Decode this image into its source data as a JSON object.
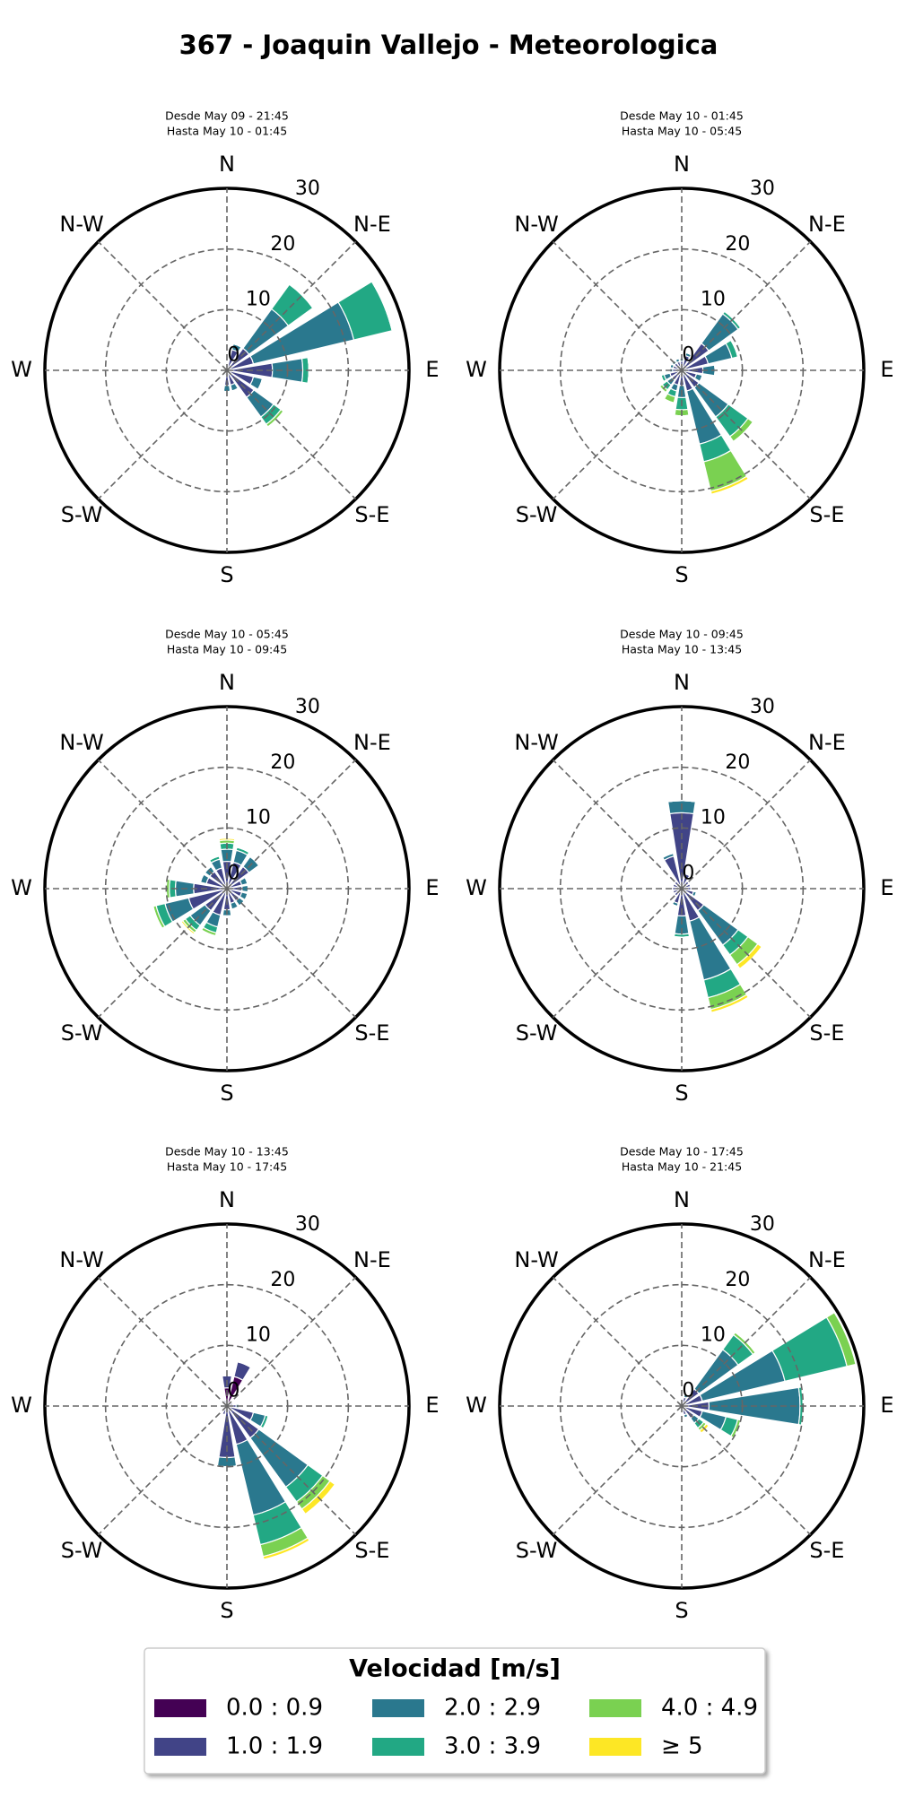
{
  "title": "367 - Joaquin Vallejo - Meteorologica",
  "legend": {
    "title": "Velocidad [m/s]",
    "items": [
      {
        "name": "0.0 : 0.9",
        "color": "#440154"
      },
      {
        "name": "1.0 : 1.9",
        "color": "#414487"
      },
      {
        "name": "2.0 : 2.9",
        "color": "#2a788e"
      },
      {
        "name": "3.0 : 3.9",
        "color": "#22a884"
      },
      {
        "name": "4.0 : 4.9",
        "color": "#7ad151"
      },
      {
        "name": "≥ 5",
        "color": "#fde725"
      }
    ]
  },
  "chart_data": [
    {
      "type": "windrose",
      "title": "Desde May 09 - 21:45",
      "subtitle": "Hasta May 10 - 01:45",
      "x": [
        0,
        22.5,
        45,
        67.5,
        90,
        112.5,
        135,
        157.5,
        180,
        202.5,
        225,
        247.5,
        270,
        292.5,
        315,
        337.5
      ],
      "xticks": [
        {
          "value": 0,
          "label": "N"
        },
        {
          "value": 45,
          "label": "N-E"
        },
        {
          "value": 90,
          "label": "E"
        },
        {
          "value": 135,
          "label": "S-E"
        },
        {
          "value": 180,
          "label": "S"
        },
        {
          "value": 225,
          "label": "S-W"
        },
        {
          "value": 270,
          "label": "W"
        },
        {
          "value": 315,
          "label": "N-W"
        }
      ],
      "ylim": [
        0,
        30
      ],
      "yticks": [
        0,
        10,
        20,
        30
      ],
      "series": [
        {
          "values": [
            0.3,
            0.5,
            0.5,
            0.5,
            0.5,
            0.5,
            0.5,
            0.5,
            0.5,
            0.3,
            0.3,
            0.3,
            0.3,
            0.3,
            0.3,
            0.3
          ]
        },
        {
          "values": [
            0.5,
            3,
            4,
            4,
            7,
            4,
            5,
            2,
            2,
            0.5,
            0.5,
            0.3,
            0.5,
            0.3,
            0.3,
            0.3
          ]
        },
        {
          "values": [
            0,
            1,
            8,
            17,
            5,
            1.5,
            4,
            1,
            1,
            0,
            0,
            0,
            0,
            0,
            0,
            0
          ]
        },
        {
          "values": [
            0,
            0,
            5,
            6.5,
            1,
            0,
            1.5,
            0,
            0,
            0,
            0,
            0,
            0,
            0,
            0,
            0
          ]
        },
        {
          "values": [
            0,
            0,
            0,
            0,
            0,
            0,
            0.5,
            0,
            0,
            0,
            0,
            0,
            0,
            0,
            0,
            0
          ]
        },
        {
          "values": [
            0,
            0,
            0,
            0,
            0,
            0,
            0,
            0,
            0,
            0,
            0,
            0,
            0,
            0,
            0,
            0
          ]
        }
      ]
    },
    {
      "type": "windrose",
      "title": "Desde May 10 - 01:45",
      "subtitle": "Hasta May 10 - 05:45",
      "x": [
        0,
        22.5,
        45,
        67.5,
        90,
        112.5,
        135,
        157.5,
        180,
        202.5,
        225,
        247.5,
        270,
        292.5,
        315,
        337.5
      ],
      "xticks": [
        {
          "value": 0,
          "label": "N"
        },
        {
          "value": 45,
          "label": "N-E"
        },
        {
          "value": 90,
          "label": "E"
        },
        {
          "value": 135,
          "label": "S-E"
        },
        {
          "value": 180,
          "label": "S"
        },
        {
          "value": 225,
          "label": "S-W"
        },
        {
          "value": 270,
          "label": "W"
        },
        {
          "value": 315,
          "label": "N-W"
        }
      ],
      "ylim": [
        0,
        30
      ],
      "yticks": [
        0,
        10,
        20,
        30
      ],
      "series": [
        {
          "values": [
            0.5,
            0.5,
            0.5,
            0.5,
            0.5,
            0.5,
            0.5,
            0.5,
            0.5,
            0.5,
            0.5,
            0.5,
            0.5,
            0.5,
            0.5,
            0.5
          ]
        },
        {
          "values": [
            1,
            2,
            5,
            4,
            3,
            2,
            3,
            3,
            2,
            2,
            1.5,
            1.5,
            1,
            1,
            1,
            1
          ]
        },
        {
          "values": [
            0.5,
            0.5,
            6,
            4,
            2,
            1,
            6,
            9,
            2,
            1,
            1,
            1,
            0.5,
            0.5,
            0.5,
            0.5
          ]
        },
        {
          "values": [
            0,
            0,
            0.5,
            1,
            0,
            0,
            4,
            3,
            2,
            1,
            1,
            0.5,
            0,
            0,
            0,
            0
          ]
        },
        {
          "values": [
            0,
            0,
            0,
            0,
            0,
            0,
            1,
            5,
            1,
            1,
            0.5,
            0,
            0,
            0,
            0,
            0
          ]
        },
        {
          "values": [
            0,
            0,
            0,
            0,
            0,
            0,
            0,
            0.5,
            0,
            0,
            0,
            0,
            0,
            0,
            0,
            0
          ]
        }
      ]
    },
    {
      "type": "windrose",
      "title": "Desde May 10 - 05:45",
      "subtitle": "Hasta May 10 - 09:45",
      "x": [
        0,
        22.5,
        45,
        67.5,
        90,
        112.5,
        135,
        157.5,
        180,
        202.5,
        225,
        247.5,
        270,
        292.5,
        315,
        337.5
      ],
      "xticks": [
        {
          "value": 0,
          "label": "N"
        },
        {
          "value": 45,
          "label": "N-E"
        },
        {
          "value": 90,
          "label": "E"
        },
        {
          "value": 135,
          "label": "S-E"
        },
        {
          "value": 180,
          "label": "S"
        },
        {
          "value": 225,
          "label": "S-W"
        },
        {
          "value": 270,
          "label": "W"
        },
        {
          "value": 315,
          "label": "N-W"
        }
      ],
      "ylim": [
        0,
        30
      ],
      "yticks": [
        0,
        10,
        20,
        30
      ],
      "series": [
        {
          "values": [
            0.5,
            0.5,
            0.5,
            0.5,
            0.5,
            0.5,
            0.5,
            0.5,
            0.5,
            0.5,
            0.5,
            0.5,
            0.5,
            0.5,
            0.5,
            0.5
          ]
        },
        {
          "values": [
            4,
            4,
            4,
            2,
            2,
            2,
            2,
            2,
            3,
            4,
            4,
            6,
            5,
            3,
            3,
            3
          ]
        },
        {
          "values": [
            2,
            2,
            2,
            1,
            1,
            1,
            1,
            1,
            1,
            2,
            3,
            4,
            3,
            1,
            1,
            1.5
          ]
        },
        {
          "values": [
            1,
            0.5,
            0,
            0,
            0,
            0,
            0,
            0,
            0,
            1,
            1,
            1.5,
            1,
            0,
            0,
            0.5
          ]
        },
        {
          "values": [
            0.5,
            0,
            0,
            0,
            0,
            0,
            0,
            0,
            0,
            0.5,
            0.5,
            0.5,
            0.5,
            0,
            0,
            0
          ]
        },
        {
          "values": [
            0.3,
            0,
            0,
            0,
            0,
            0,
            0,
            0,
            0,
            0,
            0.3,
            0,
            0,
            0,
            0,
            0
          ]
        }
      ]
    },
    {
      "type": "windrose",
      "title": "Desde May 10 - 09:45",
      "subtitle": "Hasta May 10 - 13:45",
      "x": [
        0,
        22.5,
        45,
        67.5,
        90,
        112.5,
        135,
        157.5,
        180,
        202.5,
        225,
        247.5,
        270,
        292.5,
        315,
        337.5
      ],
      "xticks": [
        {
          "value": 0,
          "label": "N"
        },
        {
          "value": 45,
          "label": "N-E"
        },
        {
          "value": 90,
          "label": "E"
        },
        {
          "value": 135,
          "label": "S-E"
        },
        {
          "value": 180,
          "label": "S"
        },
        {
          "value": 225,
          "label": "S-W"
        },
        {
          "value": 270,
          "label": "W"
        },
        {
          "value": 315,
          "label": "N-W"
        }
      ],
      "ylim": [
        0,
        30
      ],
      "yticks": [
        0,
        10,
        20,
        30
      ],
      "series": [
        {
          "values": [
            0.5,
            0.5,
            0.5,
            0.5,
            0.5,
            0.5,
            0.5,
            0.5,
            0.5,
            0.5,
            0.5,
            0.5,
            0.5,
            0.5,
            0.5,
            0.5
          ]
        },
        {
          "values": [
            12,
            2,
            1,
            1,
            1,
            1.5,
            4,
            5,
            4,
            2,
            1,
            1,
            1,
            1,
            1,
            5
          ]
        },
        {
          "values": [
            2,
            0,
            0,
            0,
            0,
            0.5,
            7,
            10,
            3,
            0.5,
            0,
            0,
            0,
            0,
            0,
            0.5
          ]
        },
        {
          "values": [
            0,
            0,
            0,
            0,
            0,
            0,
            2,
            3,
            0.5,
            0,
            0,
            0,
            0,
            0,
            0,
            0
          ]
        },
        {
          "values": [
            0,
            0,
            0,
            0,
            0,
            0,
            2,
            2,
            0,
            0,
            0,
            0,
            0,
            0,
            0,
            0
          ]
        },
        {
          "values": [
            0,
            0,
            0,
            0,
            0,
            0,
            0.8,
            0.5,
            0,
            0,
            0,
            0,
            0,
            0,
            0,
            0
          ]
        }
      ]
    },
    {
      "type": "windrose",
      "title": "Desde May 10 - 13:45",
      "subtitle": "Hasta May 10 - 17:45",
      "x": [
        0,
        22.5,
        45,
        67.5,
        90,
        112.5,
        135,
        157.5,
        180,
        202.5,
        225,
        247.5,
        270,
        292.5,
        315,
        337.5
      ],
      "xticks": [
        {
          "value": 0,
          "label": "N"
        },
        {
          "value": 45,
          "label": "N-E"
        },
        {
          "value": 90,
          "label": "E"
        },
        {
          "value": 135,
          "label": "S-E"
        },
        {
          "value": 180,
          "label": "S"
        },
        {
          "value": 225,
          "label": "S-W"
        },
        {
          "value": 270,
          "label": "W"
        },
        {
          "value": 315,
          "label": "N-W"
        }
      ],
      "ylim": [
        0,
        30
      ],
      "yticks": [
        0,
        10,
        20,
        30
      ],
      "series": [
        {
          "values": [
            3,
            5,
            0.5,
            0.5,
            0.5,
            0.5,
            0.5,
            0.5,
            0.5,
            0.5,
            0.3,
            0.3,
            0.3,
            0.3,
            0.3,
            0.5
          ]
        },
        {
          "values": [
            2,
            2.5,
            0.5,
            0.5,
            1,
            4,
            6,
            6,
            8,
            1,
            0.5,
            0.5,
            0.5,
            0.3,
            0.3,
            0.5
          ]
        },
        {
          "values": [
            0,
            0,
            0,
            0,
            0.5,
            2,
            10,
            12,
            1.5,
            0,
            0,
            0,
            0,
            0,
            0,
            0
          ]
        },
        {
          "values": [
            0,
            0,
            0,
            0,
            0,
            0.5,
            3,
            5,
            0,
            0,
            0,
            0,
            0,
            0,
            0,
            0
          ]
        },
        {
          "values": [
            0,
            0,
            0,
            0,
            0,
            0,
            1.5,
            2,
            0,
            0,
            0,
            0,
            0,
            0,
            0,
            0
          ]
        },
        {
          "values": [
            0,
            0,
            0,
            0,
            0,
            0,
            1,
            0.5,
            0,
            0,
            0,
            0,
            0,
            0,
            0,
            0
          ]
        }
      ]
    },
    {
      "type": "windrose",
      "title": "Desde May 10 - 17:45",
      "subtitle": "Hasta May 10 - 21:45",
      "x": [
        0,
        22.5,
        45,
        67.5,
        90,
        112.5,
        135,
        157.5,
        180,
        202.5,
        225,
        247.5,
        270,
        292.5,
        315,
        337.5
      ],
      "xticks": [
        {
          "value": 0,
          "label": "N"
        },
        {
          "value": 45,
          "label": "N-E"
        },
        {
          "value": 90,
          "label": "E"
        },
        {
          "value": 135,
          "label": "S-E"
        },
        {
          "value": 180,
          "label": "S"
        },
        {
          "value": 225,
          "label": "S-W"
        },
        {
          "value": 270,
          "label": "W"
        },
        {
          "value": 315,
          "label": "N-W"
        }
      ],
      "ylim": [
        0,
        30
      ],
      "yticks": [
        0,
        10,
        20,
        30
      ],
      "series": [
        {
          "values": [
            0.5,
            0.5,
            0.5,
            0.5,
            0.5,
            0.5,
            0.5,
            0.5,
            0.3,
            0.3,
            0.3,
            0.3,
            0.3,
            0.3,
            0.3,
            0.3
          ]
        },
        {
          "values": [
            0.5,
            1,
            3,
            3,
            4,
            3,
            2,
            1,
            0.5,
            0.3,
            0.3,
            0.3,
            0.3,
            0.3,
            0.3,
            0.3
          ]
        },
        {
          "values": [
            0,
            0.5,
            8,
            14,
            15,
            4,
            1,
            0.5,
            0,
            0,
            0,
            0,
            0,
            0,
            0,
            0
          ]
        },
        {
          "values": [
            0,
            0,
            3,
            10.5,
            0.5,
            2,
            1,
            0,
            0,
            0,
            0,
            0,
            0,
            0,
            0,
            0
          ]
        },
        {
          "values": [
            0,
            0,
            0.5,
            1.5,
            0,
            0.5,
            0.5,
            0,
            0,
            0,
            0,
            0,
            0,
            0,
            0,
            0
          ]
        },
        {
          "values": [
            0,
            0,
            0,
            0,
            0,
            0,
            0.5,
            0,
            0,
            0,
            0,
            0,
            0,
            0,
            0,
            0
          ]
        }
      ]
    }
  ]
}
